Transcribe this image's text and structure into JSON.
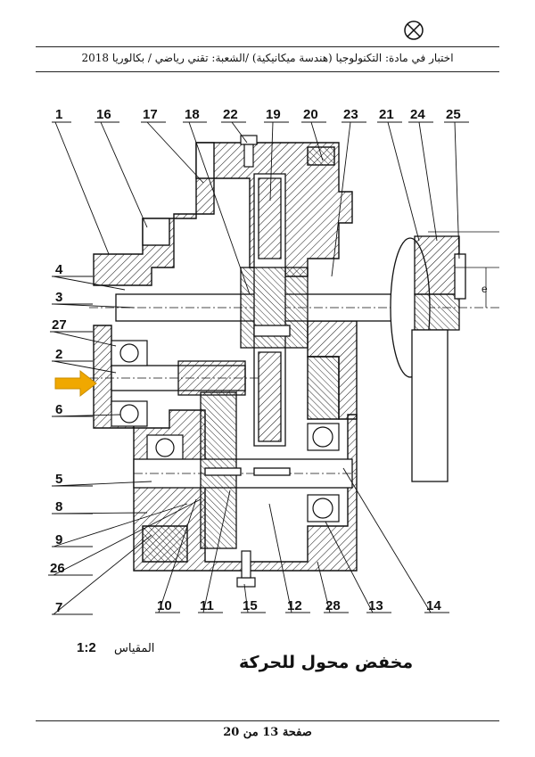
{
  "header": {
    "exam_text": "اختبار في مادة: التكنولوجيا (هندسة ميكانيكية) /الشعبة: تقني رياضي / بكالوريا 2018",
    "mark_icon": "circled-x-icon"
  },
  "drawing": {
    "title": "مخفض محول للحركة",
    "scale_label": "المقياس",
    "scale_value": "1:2",
    "dimension_label": "e",
    "input_arrow_color": "#f0a800",
    "part_labels": [
      "1",
      "16",
      "17",
      "18",
      "22",
      "19",
      "20",
      "23",
      "21",
      "24",
      "25",
      "4",
      "3",
      "27",
      "2",
      "6",
      "5",
      "8",
      "9",
      "26",
      "7",
      "10",
      "11",
      "15",
      "12",
      "28",
      "13",
      "14"
    ]
  },
  "footer": {
    "page_text": "صفحة 13 من 20"
  }
}
